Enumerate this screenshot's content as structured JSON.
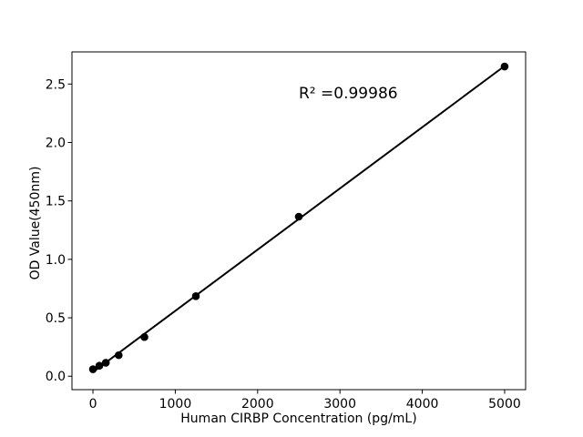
{
  "figure": {
    "background": "#ffffff"
  },
  "chart_data": {
    "type": "scatter",
    "title": "",
    "xlabel": "Human CIRBP Concentration (pg/mL)",
    "ylabel": "OD Value(450nm)",
    "annotation": {
      "text": "R² =0.99986",
      "x": 2500,
      "y": 2.41
    },
    "x_ticks": [
      0,
      1000,
      2000,
      3000,
      4000,
      5000
    ],
    "x_tick_labels": [
      "0",
      "1000",
      "2000",
      "3000",
      "4000",
      "5000"
    ],
    "y_ticks": [
      0.0,
      0.5,
      1.0,
      1.5,
      2.0,
      2.5
    ],
    "y_tick_labels": [
      "0.0",
      "0.5",
      "1.0",
      "1.5",
      "2.0",
      "2.5"
    ],
    "xlim": [
      -255,
      5255
    ],
    "ylim": [
      -0.115,
      2.775
    ],
    "grid": false,
    "legend": "none",
    "axes_color": "#000000",
    "series": [
      {
        "name": "standard-curve",
        "render": "markers-with-linear-fit-line",
        "marker_color": "#000000",
        "line_color": "#000000",
        "x": [
          0,
          78.125,
          156.25,
          312.5,
          625,
          1250,
          2500,
          5000
        ],
        "y": [
          0.06,
          0.09,
          0.115,
          0.18,
          0.335,
          0.685,
          1.365,
          2.65
        ]
      }
    ]
  }
}
